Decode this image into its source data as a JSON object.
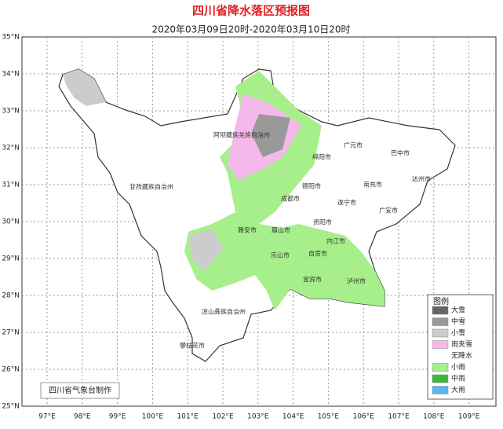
{
  "header": {
    "title": "四川省降水落区预报图",
    "subtitle": "2020年03月09日20时-2020年03月10日20时"
  },
  "lat_labels": [
    "35°N",
    "34°N",
    "33°N",
    "32°N",
    "31°N",
    "30°N",
    "29°N",
    "28°N",
    "27°N",
    "26°N",
    "25°N"
  ],
  "lon_labels": [
    "97°E",
    "98°E",
    "99°E",
    "100°E",
    "101°E",
    "102°E",
    "103°E",
    "104°E",
    "105°E",
    "106°E",
    "107°E",
    "108°E",
    "109°E"
  ],
  "places": [
    "阿坝藏族羌族自治州",
    "广元市",
    "巴中市",
    "绵阳市",
    "甘孜藏族自治州",
    "德阳市",
    "南充市",
    "达州市",
    "成都市",
    "遂宁市",
    "广安市",
    "资阳市",
    "雅安市",
    "眉山市",
    "内江市",
    "乐山市",
    "自贡市",
    "宜宾市",
    "泸州市",
    "凉山彝族自治州",
    "攀枝花市"
  ],
  "legend": {
    "title": "图例",
    "items": [
      {
        "label": "大雪",
        "color": "#666666"
      },
      {
        "label": "中雪",
        "color": "#999999"
      },
      {
        "label": "小雪",
        "color": "#cccccc"
      },
      {
        "label": "雨夹雪",
        "color": "#f5b8ea"
      },
      {
        "label": "无降水",
        "color": "#ffffff"
      },
      {
        "label": "小雨",
        "color": "#a6ef8a"
      },
      {
        "label": "中雨",
        "color": "#3ab83a"
      },
      {
        "label": "大雨",
        "color": "#5ab4f0"
      }
    ]
  },
  "credit": "四川省气象台制作"
}
